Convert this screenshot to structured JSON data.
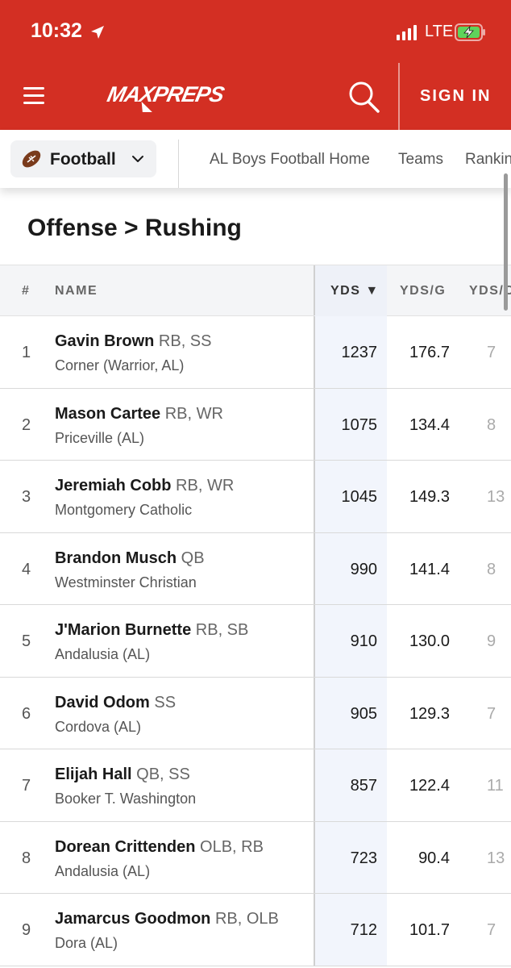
{
  "status_bar": {
    "time": "10:32",
    "network": "LTE"
  },
  "header": {
    "logo_text": "MAXPREPS",
    "sign_in_label": "SIGN IN",
    "brand_color": "#d32f23"
  },
  "subnav": {
    "sport": "Football",
    "links": [
      "AL Boys Football Home",
      "Teams",
      "Rankin"
    ]
  },
  "page_title": "Offense > Rushing",
  "table": {
    "headers": {
      "rank": "#",
      "name": "NAME",
      "yds": "YDS ▼",
      "ydsg": "YDS/G",
      "ydsc": "YDS/C"
    },
    "rows": [
      {
        "rank": "1",
        "name": "Gavin Brown",
        "positions": "RB, SS",
        "school": "Corner (Warrior, AL)",
        "yds": "1237",
        "ydsg": "176.7",
        "ydsc": "7"
      },
      {
        "rank": "2",
        "name": "Mason Cartee",
        "positions": "RB, WR",
        "school": "Priceville (AL)",
        "yds": "1075",
        "ydsg": "134.4",
        "ydsc": "8"
      },
      {
        "rank": "3",
        "name": "Jeremiah Cobb",
        "positions": "RB, WR",
        "school": "Montgomery Catholic",
        "yds": "1045",
        "ydsg": "149.3",
        "ydsc": "13"
      },
      {
        "rank": "4",
        "name": "Brandon Musch",
        "positions": "QB",
        "school": "Westminster Christian",
        "yds": "990",
        "ydsg": "141.4",
        "ydsc": "8"
      },
      {
        "rank": "5",
        "name": "J'Marion Burnette",
        "positions": "RB, SB",
        "school": "Andalusia (AL)",
        "yds": "910",
        "ydsg": "130.0",
        "ydsc": "9"
      },
      {
        "rank": "6",
        "name": "David Odom",
        "positions": "SS",
        "school": "Cordova (AL)",
        "yds": "905",
        "ydsg": "129.3",
        "ydsc": "7"
      },
      {
        "rank": "7",
        "name": "Elijah Hall",
        "positions": "QB, SS",
        "school": "Booker T. Washington",
        "yds": "857",
        "ydsg": "122.4",
        "ydsc": "11"
      },
      {
        "rank": "8",
        "name": "Dorean Crittenden",
        "positions": "OLB, RB",
        "school": "Andalusia (AL)",
        "yds": "723",
        "ydsg": "90.4",
        "ydsc": "13"
      },
      {
        "rank": "9",
        "name": "Jamarcus Goodmon",
        "positions": "RB, OLB",
        "school": "Dora (AL)",
        "yds": "712",
        "ydsg": "101.7",
        "ydsc": "7"
      }
    ]
  }
}
